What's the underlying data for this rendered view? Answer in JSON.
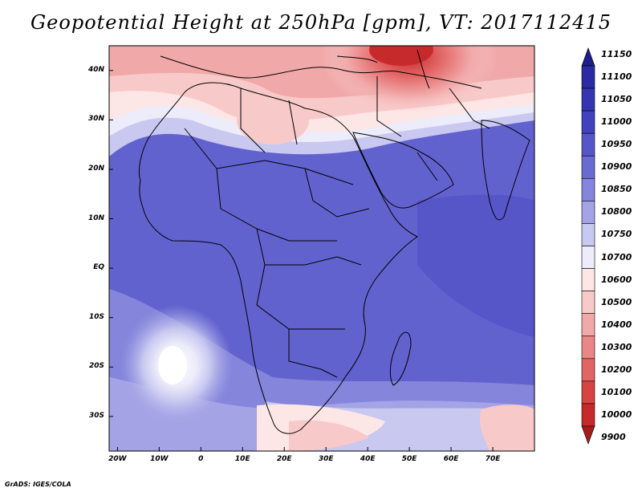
{
  "title": "Geopotential Height at 250hPa [gpm], VT: 2017112415",
  "credit": "GrADS: IGES/COLA",
  "map": {
    "region": "Africa and Arabian Peninsula",
    "lat_labels": [
      "40N",
      "30N",
      "20N",
      "10N",
      "EQ",
      "10S",
      "20S",
      "30S"
    ],
    "lon_labels": [
      "20W",
      "10W",
      "0",
      "10E",
      "20E",
      "30E",
      "40E",
      "50E",
      "60E",
      "70E"
    ],
    "lat_range": [
      -37,
      45
    ],
    "lon_range": [
      -22,
      80
    ]
  },
  "colorbar": {
    "labels": [
      "11150",
      "11100",
      "11050",
      "11000",
      "10950",
      "10900",
      "10850",
      "10800",
      "10750",
      "10700",
      "10600",
      "10500",
      "10400",
      "10300",
      "10200",
      "10100",
      "10000",
      "9900"
    ],
    "colors": [
      "#1d1d8c",
      "#2a2aa3",
      "#3535b2",
      "#4242bf",
      "#5656c9",
      "#6a6ad3",
      "#8585dc",
      "#a3a3e6",
      "#c8c8f0",
      "#ececfa",
      "#fde6e6",
      "#f8c9c9",
      "#f1a8a8",
      "#ea8686",
      "#e26464",
      "#d84444",
      "#c72a2a",
      "#a61b1b"
    ]
  }
}
